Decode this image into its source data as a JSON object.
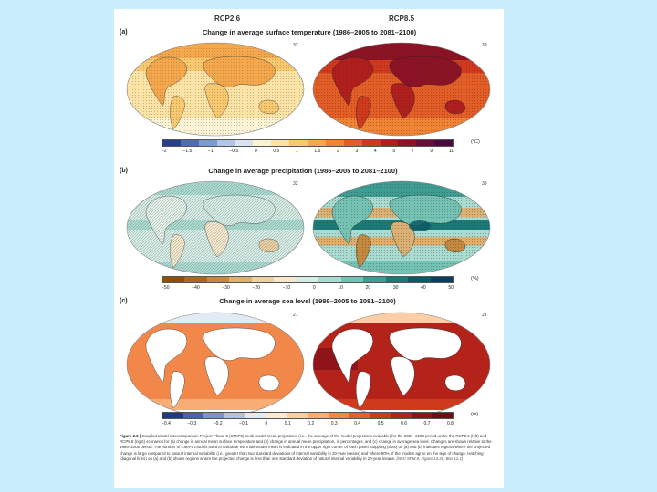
{
  "figure": {
    "scenario_left": "RCP2.6",
    "scenario_right": "RCP8.5",
    "panels": [
      {
        "label": "(a)",
        "title": "Change in average surface temperature (1986–2005 to 2081–2100)",
        "count_left": "32",
        "count_right": "39",
        "colorbar_ticks": [
          "−2",
          "−1.5",
          "−1",
          "−0.5",
          "0",
          "0.5",
          "1",
          "1.5",
          "2",
          "3",
          "4",
          "5",
          "7",
          "9",
          "11"
        ],
        "unit": "(°C)",
        "colorbar_colors": [
          "#2a3f8c",
          "#4d6db0",
          "#7c9bcf",
          "#b1c6e4",
          "#dae4f1",
          "#fbf3d5",
          "#fbe3a6",
          "#f9c96f",
          "#f5a74c",
          "#ef8435",
          "#e35d27",
          "#cf3a1f",
          "#b01f1e",
          "#8c1226",
          "#6a0c38",
          "#4a0a3e"
        ]
      },
      {
        "label": "(b)",
        "title": "Change in average precipitation (1986–2005 to 2081–2100)",
        "count_left": "32",
        "count_right": "39",
        "colorbar_ticks": [
          "−50",
          "−40",
          "−30",
          "−20",
          "−10",
          "0",
          "10",
          "20",
          "30",
          "40",
          "50"
        ],
        "unit": "(%)",
        "colorbar_colors": [
          "#8c510a",
          "#a86a20",
          "#c48940",
          "#dbb073",
          "#ead0a3",
          "#f5e8cc",
          "#d5ede6",
          "#a9dbd0",
          "#74c2b3",
          "#3e9d93",
          "#1a7a78",
          "#0c5a66",
          "#0b3d5c"
        ]
      },
      {
        "label": "(c)",
        "title": "Change in average sea level (1986–2005 to 2081–2100)",
        "count_left": "21",
        "count_right": "21",
        "colorbar_ticks": [
          "−0.4",
          "−0.3",
          "−0.2",
          "−0.1",
          "0",
          "0.1",
          "0.2",
          "0.3",
          "0.4",
          "0.5",
          "0.6",
          "0.7",
          "0.8"
        ],
        "unit": "(m)",
        "colorbar_colors": [
          "#1f3c7a",
          "#4466a8",
          "#7896c8",
          "#aec4e2",
          "#e2eaf4",
          "#fde8d2",
          "#fbcfa6",
          "#f8ad74",
          "#f2874a",
          "#e75d2c",
          "#cf3a1d",
          "#b3231a",
          "#8e1419",
          "#6e0d14"
        ]
      }
    ],
    "caption": {
      "fig_label": "Figure 2.2 |",
      "text": "Coupled Model Intercomparison Project Phase 5 (CMIP5) multi-model mean projections (i.e., the average of the model projections available) for the 2081–2100 period under the RCP2.6 (left) and RCP8.5 (right) scenarios for (a) change in annual mean surface temperature and (b) change in annual mean precipitation, in percentages, and (c) change in average sea level. Changes are shown relative to the 1986–2005 period. The number of CMIP5 models used to calculate the multi-model mean is indicated in the upper right corner of each panel. Stippling (dots) on (a) and (b) indicates regions where the projected change is large compared to natural internal variability (i.e., greater than two standard deviations of internal variability in 20-year means) and where 90% of the models agree on the sign of change. Hatching (diagonal lines) on (a) and (b) shows regions where the projected change is less than one standard deviation of natural internal variability in 20-year means.",
      "source": "{WGI SPM.8, Figure 13.20, Box 12.1}"
    }
  }
}
